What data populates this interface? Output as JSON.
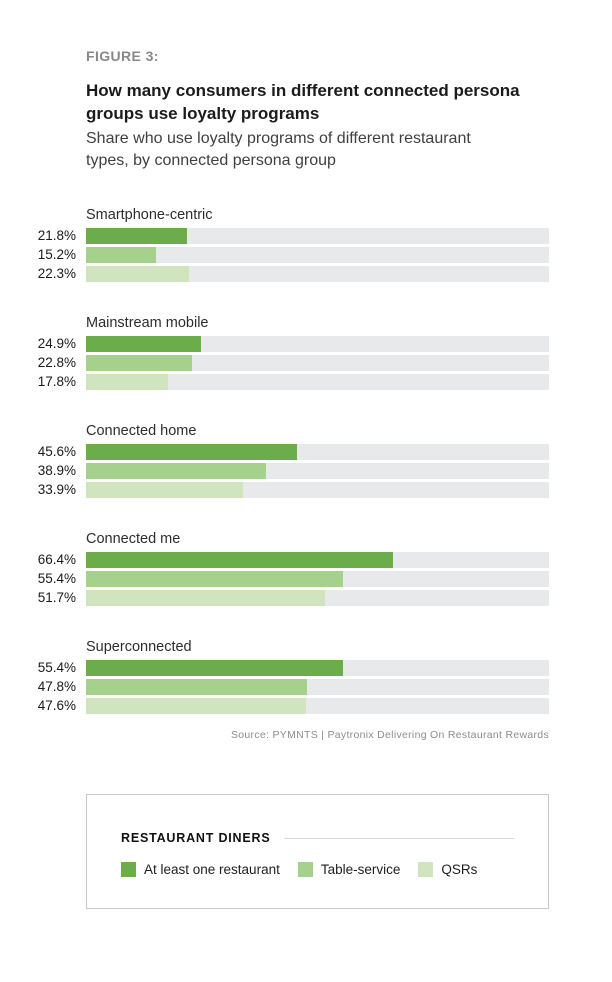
{
  "figure_label": "FIGURE 3:",
  "title": "How many consumers in different connected persona\ngroups use loyalty programs",
  "subtitle": "Share who use loyalty programs of different restaurant\ntypes, by connected persona group",
  "source": "Source: PYMNTS | Paytronix Delivering On Restaurant Rewards",
  "colors": {
    "series": [
      "#6cad4b",
      "#a6d18d",
      "#d1e4c0"
    ],
    "bar_track": "#e8e9ea",
    "figure_label": "#87888a",
    "title_text": "#1b1b1d",
    "source_text": "#8c8d90",
    "legend_border": "#c9c9cb"
  },
  "legend": {
    "header": "RESTAURANT DINERS",
    "items": [
      {
        "label": "At least one restaurant"
      },
      {
        "label": "Table-service"
      },
      {
        "label": "QSRs"
      }
    ]
  },
  "chart_data": {
    "type": "bar",
    "orientation": "horizontal",
    "unit": "%",
    "xlim": [
      0,
      100
    ],
    "grid": false,
    "legend_position": "bottom-box",
    "series_names": [
      "At least one restaurant",
      "Table-service",
      "QSRs"
    ],
    "groups": [
      {
        "label": "Smartphone-centric",
        "values": [
          21.8,
          15.2,
          22.3
        ]
      },
      {
        "label": "Mainstream mobile",
        "values": [
          24.9,
          22.8,
          17.8
        ]
      },
      {
        "label": "Connected home",
        "values": [
          45.6,
          38.9,
          33.9
        ]
      },
      {
        "label": "Connected me",
        "values": [
          66.4,
          55.4,
          51.7
        ]
      },
      {
        "label": "Superconnected",
        "values": [
          55.4,
          47.8,
          47.6
        ]
      }
    ]
  }
}
